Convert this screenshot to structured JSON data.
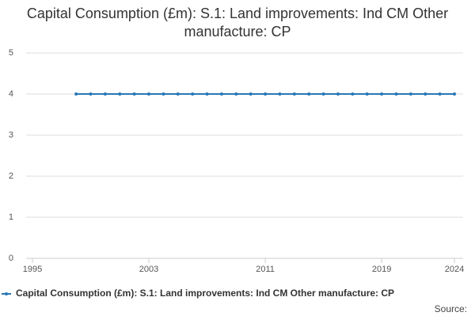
{
  "chart_data": {
    "type": "line",
    "title": "Capital Consumption (£m): S.1: Land improvements: Ind CM Other manufacture: CP",
    "x": [
      1998,
      1999,
      2000,
      2001,
      2002,
      2003,
      2004,
      2005,
      2006,
      2007,
      2008,
      2009,
      2010,
      2011,
      2012,
      2013,
      2014,
      2015,
      2016,
      2017,
      2018,
      2019,
      2020,
      2021,
      2022,
      2023,
      2024
    ],
    "series": [
      {
        "name": "Capital Consumption (£m): S.1: Land improvements: Ind CM Other manufacture: CP",
        "color": "#2878b5",
        "values": [
          4,
          4,
          4,
          4,
          4,
          4,
          4,
          4,
          4,
          4,
          4,
          4,
          4,
          4,
          4,
          4,
          4,
          4,
          4,
          4,
          4,
          4,
          4,
          4,
          4,
          4,
          4
        ]
      }
    ],
    "xlim": [
      1995,
      2024
    ],
    "xticks": [
      1995,
      2003,
      2011,
      2019,
      2024
    ],
    "ylim": [
      0,
      5
    ],
    "yticks": [
      0,
      1,
      2,
      3,
      4,
      5
    ],
    "grid": true,
    "legend": "bottom",
    "source_label": "Source:"
  }
}
